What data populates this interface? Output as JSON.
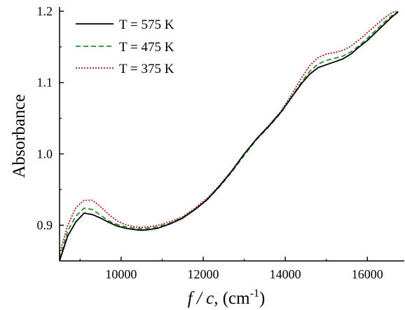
{
  "chart_data": {
    "type": "line",
    "title": "",
    "ylabel": "Absorbance",
    "xlabel": {
      "italic": "f / c,",
      "normal": " (cm",
      "superscript": "-1",
      "close": ")"
    },
    "xlim": [
      8500,
      16900
    ],
    "ylim": [
      0.85,
      1.2
    ],
    "x_ticks": [
      10000,
      12000,
      14000,
      16000
    ],
    "x_tick_labels": [
      "10000",
      "12000",
      "14000",
      "16000"
    ],
    "y_ticks": [
      0.9,
      1.0,
      1.1,
      1.2
    ],
    "y_tick_labels": [
      "0.9",
      "1.0",
      "1.1",
      "1.2"
    ],
    "grid": false,
    "legend_position": "top-left",
    "series": [
      {
        "name": "T = 575 K",
        "color": "#000000",
        "dash": "solid",
        "x": [
          8500,
          8700,
          8900,
          9100,
          9300,
          9500,
          9700,
          9900,
          10100,
          10300,
          10500,
          10700,
          10900,
          11200,
          11500,
          11800,
          12100,
          12400,
          12700,
          13000,
          13300,
          13600,
          13900,
          14200,
          14400,
          14600,
          14800,
          15000,
          15200,
          15400,
          15600,
          15800,
          16000,
          16200,
          16400,
          16600,
          16750
        ],
        "y": [
          0.845,
          0.885,
          0.905,
          0.917,
          0.915,
          0.91,
          0.904,
          0.899,
          0.896,
          0.894,
          0.893,
          0.894,
          0.896,
          0.902,
          0.91,
          0.922,
          0.936,
          0.955,
          0.976,
          1.0,
          1.021,
          1.039,
          1.059,
          1.083,
          1.099,
          1.112,
          1.121,
          1.125,
          1.129,
          1.133,
          1.14,
          1.15,
          1.159,
          1.17,
          1.181,
          1.192,
          1.199
        ]
      },
      {
        "name": "T = 475 K",
        "color": "#2e8b2e",
        "dash": "dashed",
        "x": [
          8500,
          8700,
          8900,
          9100,
          9300,
          9500,
          9700,
          9900,
          10100,
          10300,
          10500,
          10700,
          10900,
          11200,
          11500,
          11800,
          12100,
          12400,
          12700,
          13000,
          13300,
          13600,
          13900,
          14200,
          14400,
          14600,
          14800,
          15000,
          15200,
          15400,
          15600,
          15800,
          16000,
          16200,
          16400,
          16600,
          16750
        ],
        "y": [
          0.853,
          0.892,
          0.913,
          0.924,
          0.922,
          0.914,
          0.906,
          0.901,
          0.898,
          0.896,
          0.895,
          0.896,
          0.898,
          0.903,
          0.911,
          0.922,
          0.936,
          0.954,
          0.975,
          0.998,
          1.02,
          1.038,
          1.058,
          1.084,
          1.101,
          1.116,
          1.126,
          1.131,
          1.134,
          1.137,
          1.143,
          1.152,
          1.162,
          1.173,
          1.184,
          1.194,
          1.2
        ]
      },
      {
        "name": "T = 375 K",
        "color": "#a0181e",
        "dash": "dotted",
        "x": [
          8500,
          8700,
          8900,
          9100,
          9300,
          9500,
          9700,
          9900,
          10100,
          10300,
          10500,
          10700,
          10900,
          11200,
          11500,
          11800,
          12100,
          12400,
          12700,
          13000,
          13300,
          13600,
          13900,
          14200,
          14400,
          14600,
          14800,
          15000,
          15200,
          15400,
          15600,
          15800,
          16000,
          16200,
          16400,
          16600,
          16700
        ],
        "y": [
          0.86,
          0.9,
          0.925,
          0.935,
          0.935,
          0.926,
          0.915,
          0.906,
          0.901,
          0.898,
          0.897,
          0.898,
          0.9,
          0.905,
          0.912,
          0.924,
          0.938,
          0.956,
          0.977,
          1.0,
          1.021,
          1.04,
          1.06,
          1.088,
          1.107,
          1.124,
          1.135,
          1.14,
          1.142,
          1.145,
          1.151,
          1.16,
          1.17,
          1.18,
          1.19,
          1.198,
          1.2
        ]
      }
    ]
  }
}
